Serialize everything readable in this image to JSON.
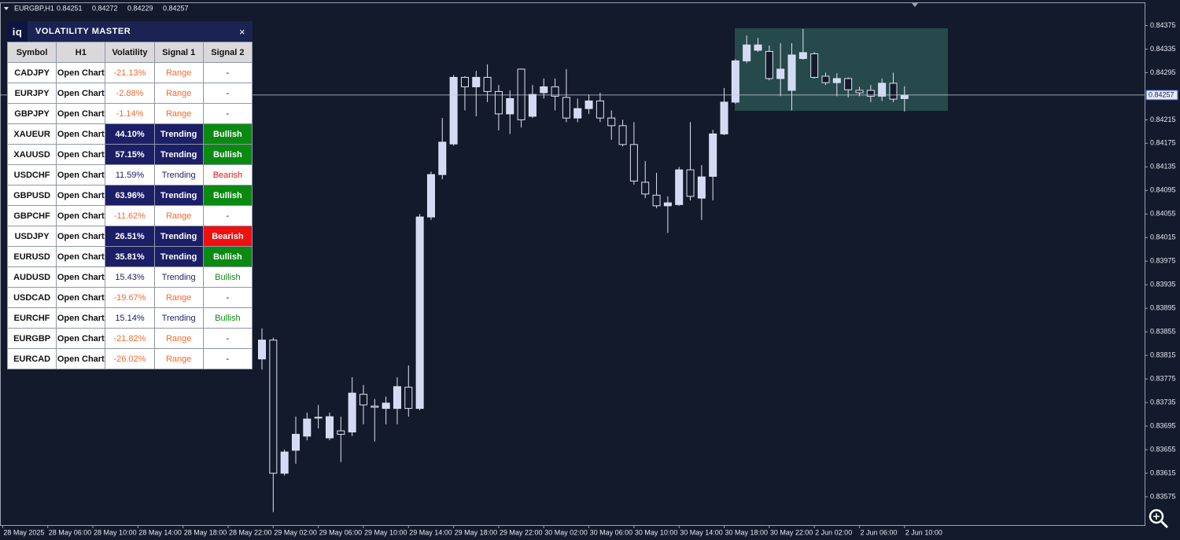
{
  "header": {
    "symbol": "EURGBP,H1",
    "prices": [
      0.84251,
      0.84272,
      0.84229,
      0.84257
    ]
  },
  "panel": {
    "logo": "iq",
    "title": "VOLATILITY MASTER",
    "close": "×",
    "columns": [
      "Symbol",
      "H1",
      "Volatility",
      "Signal 1",
      "Signal 2"
    ],
    "rows": [
      {
        "cells": [
          "CADJPY",
          "Open Chart",
          "-21.13%",
          "Range",
          "-"
        ],
        "highlight": false
      },
      {
        "cells": [
          "EURJPY",
          "Open Chart",
          "-2.88%",
          "Range",
          "-"
        ],
        "highlight": false
      },
      {
        "cells": [
          "GBPJPY",
          "Open Chart",
          "-1.14%",
          "Range",
          "-"
        ],
        "highlight": false
      },
      {
        "cells": [
          "XAUEUR",
          "Open Chart",
          "44.10%",
          "Trending",
          "Bullish"
        ],
        "highlight": true
      },
      {
        "cells": [
          "XAUUSD",
          "Open Chart",
          "57.15%",
          "Trending",
          "Bullish"
        ],
        "highlight": true
      },
      {
        "cells": [
          "USDCHF",
          "Open Chart",
          "11.59%",
          "Trending",
          "Bearish"
        ],
        "highlight": false
      },
      {
        "cells": [
          "GBPUSD",
          "Open Chart",
          "63.96%",
          "Trending",
          "Bullish"
        ],
        "highlight": true
      },
      {
        "cells": [
          "GBPCHF",
          "Open Chart",
          "-11.62%",
          "Range",
          "-"
        ],
        "highlight": false
      },
      {
        "cells": [
          "USDJPY",
          "Open Chart",
          "26.51%",
          "Trending",
          "Bearish"
        ],
        "highlight": true
      },
      {
        "cells": [
          "EURUSD",
          "Open Chart",
          "35.81%",
          "Trending",
          "Bullish"
        ],
        "highlight": true
      },
      {
        "cells": [
          "AUDUSD",
          "Open Chart",
          "15.43%",
          "Trending",
          "Bullish"
        ],
        "highlight": false
      },
      {
        "cells": [
          "USDCAD",
          "Open Chart",
          "-19.67%",
          "Range",
          "-"
        ],
        "highlight": false
      },
      {
        "cells": [
          "EURCHF",
          "Open Chart",
          "15.14%",
          "Trending",
          "Bullish"
        ],
        "highlight": false
      },
      {
        "cells": [
          "EURGBP",
          "Open Chart",
          "-21.82%",
          "Range",
          "-"
        ],
        "highlight": false
      },
      {
        "cells": [
          "EURCAD",
          "Open Chart",
          "-26.02%",
          "Range",
          "-"
        ],
        "highlight": false
      }
    ]
  },
  "chart_data": {
    "type": "candlestick",
    "open": [
      0.83809,
      0.83841,
      0.83615,
      0.83654,
      0.83678,
      0.83709,
      0.83675,
      0.83687,
      0.83685,
      0.83749,
      0.83729,
      0.83725,
      0.83725,
      0.83761,
      0.83725,
      0.8405,
      0.84122,
      0.84174,
      0.84287,
      0.84271,
      0.84287,
      0.84263,
      0.84225,
      0.84301,
      0.84221,
      0.84261,
      0.84271,
      0.84253,
      0.84218,
      0.84234,
      0.84247,
      0.84218,
      0.84205,
      0.84173,
      0.84109,
      0.84087,
      0.84069,
      0.84071,
      0.8413,
      0.84082,
      0.84119,
      0.84191,
      0.84245,
      0.84315,
      0.84333,
      0.84331,
      0.84285,
      0.84265,
      0.84319,
      0.84327,
      0.84289,
      0.84278,
      0.84285,
      0.84265,
      0.84265,
      0.84255,
      0.84277,
      0.84251
    ],
    "high": [
      0.83861,
      0.83845,
      0.83655,
      0.83711,
      0.83718,
      0.83731,
      0.83718,
      0.83711,
      0.83778,
      0.83765,
      0.83741,
      0.83745,
      0.83778,
      0.83798,
      0.84055,
      0.84127,
      0.84218,
      0.84291,
      0.84289,
      0.84298,
      0.84309,
      0.84274,
      0.84265,
      0.84302,
      0.84274,
      0.84285,
      0.84285,
      0.84301,
      0.84251,
      0.84258,
      0.84261,
      0.84231,
      0.84215,
      0.84211,
      0.84145,
      0.84125,
      0.84085,
      0.84135,
      0.84211,
      0.84138,
      0.84198,
      0.84269,
      0.84318,
      0.84358,
      0.84354,
      0.84341,
      0.84345,
      0.84345,
      0.84369,
      0.8433,
      0.84295,
      0.84294,
      0.84287,
      0.84271,
      0.84274,
      0.84285,
      0.84295,
      0.84272
    ],
    "low": [
      0.83791,
      0.83549,
      0.83611,
      0.83631,
      0.83671,
      0.83691,
      0.83671,
      0.83634,
      0.83678,
      0.83698,
      0.83669,
      0.83698,
      0.83698,
      0.83711,
      0.83722,
      0.84045,
      0.84114,
      0.84171,
      0.84231,
      0.84221,
      0.84245,
      0.84197,
      0.84191,
      0.84202,
      0.84218,
      0.84251,
      0.84231,
      0.84211,
      0.84211,
      0.84225,
      0.84211,
      0.84181,
      0.8417,
      0.84105,
      0.84082,
      0.84065,
      0.84023,
      0.84069,
      0.84078,
      0.84045,
      0.84078,
      0.84189,
      0.84242,
      0.84311,
      0.8433,
      0.84282,
      0.84255,
      0.84231,
      0.84317,
      0.84285,
      0.84274,
      0.84255,
      0.84253,
      0.84255,
      0.84245,
      0.84247,
      0.84245,
      0.84229
    ],
    "close": [
      0.83841,
      0.83615,
      0.83651,
      0.83681,
      0.83707,
      0.8371,
      0.83711,
      0.83681,
      0.83751,
      0.83731,
      0.83727,
      0.83734,
      0.83762,
      0.83725,
      0.8405,
      0.84122,
      0.84177,
      0.84287,
      0.84271,
      0.84287,
      0.84263,
      0.84225,
      0.84251,
      0.84215,
      0.84258,
      0.84271,
      0.84255,
      0.84218,
      0.84234,
      0.84247,
      0.84218,
      0.84205,
      0.84173,
      0.84111,
      0.84089,
      0.84069,
      0.84074,
      0.8413,
      0.84085,
      0.84118,
      0.84191,
      0.84245,
      0.84315,
      0.84342,
      0.84342,
      0.84285,
      0.84301,
      0.84325,
      0.84329,
      0.84287,
      0.84278,
      0.84285,
      0.84266,
      0.84261,
      0.84255,
      0.84277,
      0.8425,
      0.84257
    ],
    "current_price": 0.84257,
    "ylim": [
      0.83527,
      0.84413
    ],
    "yticks": [
      0.84375,
      0.84335,
      0.84295,
      0.84215,
      0.84175,
      0.84135,
      0.84095,
      0.84055,
      0.84015,
      0.83975,
      0.83935,
      0.83895,
      0.83855,
      0.83815,
      0.83775,
      0.83735,
      0.83695,
      0.83655,
      0.83615,
      0.83575
    ],
    "x_labels": [
      "28 May 2025",
      "28 May 06:00",
      "28 May 10:00",
      "28 May 14:00",
      "28 May 18:00",
      "28 May 22:00",
      "29 May 02:00",
      "29 May 06:00",
      "29 May 10:00",
      "29 May 14:00",
      "29 May 18:00",
      "29 May 22:00",
      "30 May 02:00",
      "30 May 06:00",
      "30 May 10:00",
      "30 May 14:00",
      "30 May 18:00",
      "30 May 22:00",
      "2 Jun 02:00",
      "2 Jun 06:00",
      "2 Jun 10:00"
    ],
    "bull_color": "#d3daf3",
    "bear_color": "#131a2c"
  }
}
